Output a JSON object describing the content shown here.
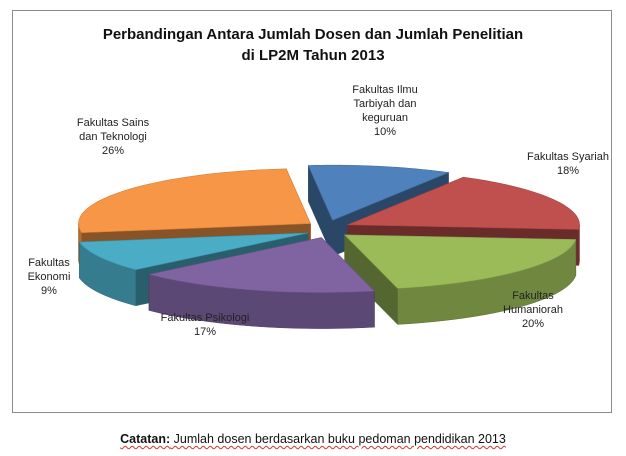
{
  "chart_data": {
    "type": "pie",
    "title_lines": [
      "Perbandingan  Antara Jumlah Dosen dan Jumlah Penelitian",
      "di LP2M Tahun 2013"
    ],
    "slices": [
      {
        "label_lines": [
          "Fakultas Ilmu",
          "Tarbiyah dan",
          "keguruan"
        ],
        "percent_text": "10%",
        "value": 10,
        "color": "#4f81bd"
      },
      {
        "label_lines": [
          "Fakultas Syariah"
        ],
        "percent_text": "18%",
        "value": 18,
        "color": "#c0504d"
      },
      {
        "label_lines": [
          "Fakultas",
          "Humaniorah"
        ],
        "percent_text": "20%",
        "value": 20,
        "color": "#9bbb59"
      },
      {
        "label_lines": [
          "Fakultas Psikologi"
        ],
        "percent_text": "17%",
        "value": 17,
        "color": "#8064a2"
      },
      {
        "label_lines": [
          "Fakultas",
          "Ekonomi"
        ],
        "percent_text": "9%",
        "value": 9,
        "color": "#4bacc6"
      },
      {
        "label_lines": [
          "Fakultas Sains",
          "dan Teknologi"
        ],
        "percent_text": "26%",
        "value": 26,
        "color": "#f79646"
      }
    ],
    "style": "3d-exploded-pie",
    "legend": "none"
  },
  "caption": {
    "prefix": "Catatan:",
    "text": " Jumlah dosen berdasarkan buku pedoman pendidikan 2013"
  }
}
